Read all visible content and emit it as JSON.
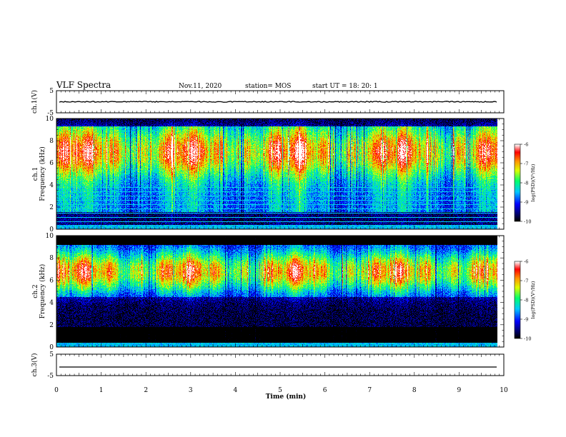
{
  "header": {
    "title": "VLF Spectra",
    "date": "Nov.11, 2020",
    "station": "station= MOS",
    "start": "start  UT  =   18: 20: 1"
  },
  "chart_data": [
    {
      "type": "line",
      "panel": "ch1-waveform",
      "ylabel": "ch.1(V)",
      "ylim": [
        -5,
        5
      ],
      "y_ticks": [
        "5",
        "-5"
      ],
      "series": [
        {
          "constant_value": 0
        }
      ],
      "xlim": [
        0,
        10
      ]
    },
    {
      "type": "heatmap",
      "panel": "ch1-spectrogram",
      "ylabel": "ch.1\nFrequency (kHz)",
      "ylim": [
        0,
        10
      ],
      "y_ticks": [
        "0",
        "2",
        "4",
        "6",
        "8",
        "10"
      ],
      "xlim": [
        0,
        10
      ],
      "data_end_min": 9.85,
      "colorbar": {
        "label": "log(PSD)(V²/Hz)",
        "ticks": [
          "-6",
          "-7",
          "-8",
          "-9",
          "-10"
        ],
        "range": [
          -10,
          -6
        ]
      }
    },
    {
      "type": "heatmap",
      "panel": "ch2-spectrogram",
      "ylabel": "ch.2\nFrequency (kHz)",
      "ylim": [
        0,
        10
      ],
      "y_ticks": [
        "0",
        "2",
        "4",
        "6",
        "8",
        "10"
      ],
      "xlim": [
        0,
        10
      ],
      "data_end_min": 9.85,
      "colorbar": {
        "label": "log(PSD)(V²/Hz)",
        "ticks": [
          "-6",
          "-7",
          "-8",
          "-9",
          "-10"
        ],
        "range": [
          -10,
          -6
        ]
      }
    },
    {
      "type": "line",
      "panel": "ch3-waveform",
      "ylabel": "ch.3(V)",
      "ylim": [
        -5,
        5
      ],
      "y_ticks": [
        "5",
        "-5"
      ],
      "series": [
        {
          "constant_value": -1
        }
      ],
      "xlim": [
        0,
        10
      ]
    }
  ],
  "xaxis": {
    "label": "Time (min)",
    "ticks": [
      "0",
      "1",
      "2",
      "3",
      "4",
      "5",
      "6",
      "7",
      "8",
      "9",
      "10"
    ]
  },
  "colors": {
    "colormap": [
      "#000000",
      "#00008b",
      "#0000ff",
      "#00ccff",
      "#00ff66",
      "#ffff00",
      "#ff7f00",
      "#ff0000",
      "#ffffff"
    ]
  }
}
